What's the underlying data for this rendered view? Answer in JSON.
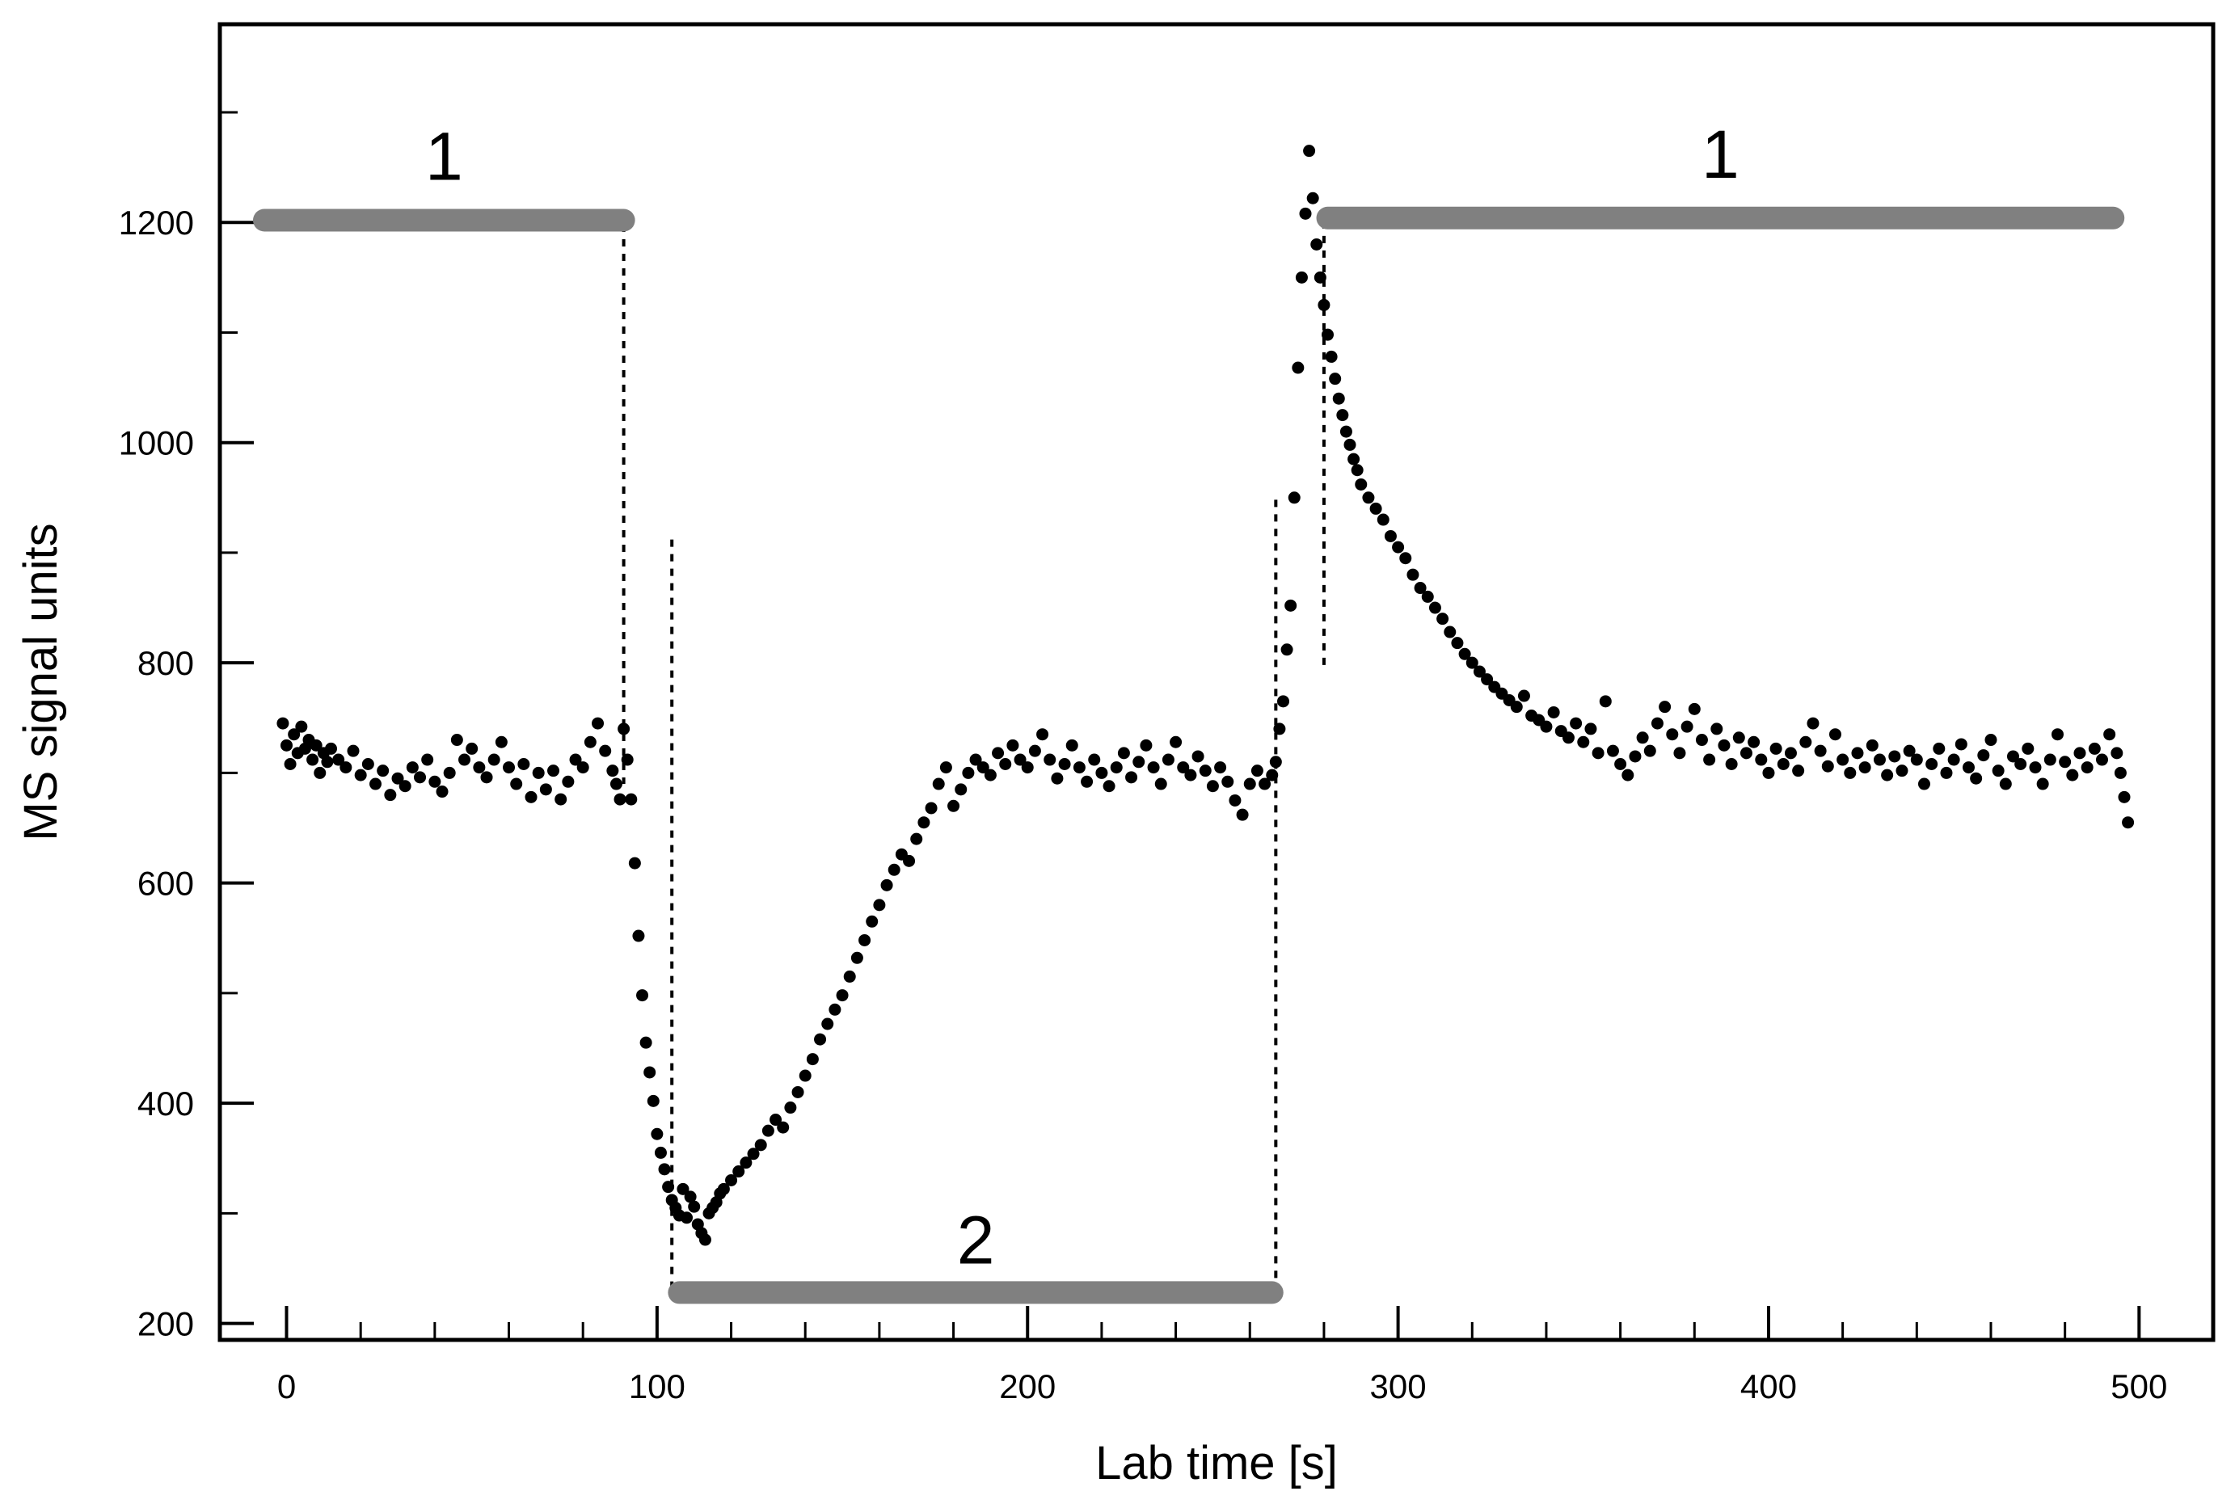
{
  "chart_data": {
    "type": "scatter",
    "xlabel": "Lab time [s]",
    "ylabel": "MS signal units",
    "xlim": [
      -18,
      520
    ],
    "ylim": [
      185,
      1380
    ],
    "x_ticks": [
      0,
      100,
      200,
      300,
      400,
      500
    ],
    "x_tick_labels": [
      "0",
      "100",
      "200",
      "300",
      "400",
      "500"
    ],
    "x_minor_step": 20,
    "y_ticks": [
      200,
      400,
      600,
      800,
      1000,
      1200
    ],
    "y_tick_labels": [
      "200",
      "400",
      "600",
      "800",
      "1000",
      "1200"
    ],
    "y_minor_step": 100,
    "grid": false,
    "colors": {
      "points": "#000000",
      "phase_bars": "#808080",
      "axes": "#000000"
    },
    "phase_bars": [
      {
        "label": "1",
        "x_start": -6,
        "x_end": 91,
        "y": 1202
      },
      {
        "label": "2",
        "x_start": 106,
        "x_end": 266,
        "y": 228
      },
      {
        "label": "1",
        "x_start": 281,
        "x_end": 493,
        "y": 1204
      }
    ],
    "markers": [
      {
        "x": 91,
        "y_from": 1198,
        "y_to": 690
      },
      {
        "x": 104,
        "y_from": 912,
        "y_to": 230
      },
      {
        "x": 267,
        "y_from": 228,
        "y_to": 953
      },
      {
        "x": 280,
        "y_from": 798,
        "y_to": 1198
      }
    ],
    "series": [
      {
        "style": "dotted",
        "description_points": [
          [
            -1,
            745
          ],
          [
            0,
            725
          ],
          [
            1,
            708
          ],
          [
            2,
            735
          ],
          [
            3,
            718
          ],
          [
            4,
            742
          ],
          [
            5,
            722
          ],
          [
            6,
            730
          ],
          [
            7,
            712
          ],
          [
            8,
            725
          ],
          [
            9,
            700
          ],
          [
            10,
            718
          ],
          [
            11,
            710
          ],
          [
            12,
            722
          ],
          [
            14,
            712
          ],
          [
            16,
            705
          ],
          [
            18,
            720
          ],
          [
            20,
            698
          ],
          [
            22,
            708
          ],
          [
            24,
            690
          ],
          [
            26,
            702
          ],
          [
            28,
            680
          ],
          [
            30,
            695
          ],
          [
            32,
            688
          ],
          [
            34,
            705
          ],
          [
            36,
            696
          ],
          [
            38,
            712
          ],
          [
            40,
            692
          ],
          [
            42,
            683
          ],
          [
            44,
            700
          ],
          [
            46,
            730
          ],
          [
            48,
            712
          ],
          [
            50,
            722
          ],
          [
            52,
            705
          ],
          [
            54,
            696
          ],
          [
            56,
            712
          ],
          [
            58,
            728
          ],
          [
            60,
            705
          ],
          [
            62,
            690
          ],
          [
            64,
            708
          ],
          [
            66,
            678
          ],
          [
            68,
            700
          ],
          [
            70,
            685
          ],
          [
            72,
            702
          ],
          [
            74,
            676
          ],
          [
            76,
            692
          ],
          [
            78,
            712
          ],
          [
            80,
            705
          ],
          [
            82,
            728
          ],
          [
            84,
            745
          ],
          [
            86,
            720
          ],
          [
            88,
            702
          ],
          [
            89,
            690
          ],
          [
            90,
            676
          ],
          [
            91,
            740
          ],
          [
            92,
            712
          ],
          [
            93,
            676
          ],
          [
            94,
            618
          ],
          [
            95,
            552
          ],
          [
            96,
            498
          ],
          [
            97,
            455
          ],
          [
            98,
            428
          ],
          [
            99,
            402
          ],
          [
            100,
            372
          ],
          [
            101,
            355
          ],
          [
            102,
            340
          ],
          [
            103,
            324
          ],
          [
            104,
            312
          ],
          [
            105,
            305
          ],
          [
            106,
            298
          ],
          [
            107,
            322
          ],
          [
            108,
            296
          ],
          [
            109,
            315
          ],
          [
            110,
            306
          ],
          [
            111,
            290
          ],
          [
            112,
            282
          ],
          [
            113,
            276
          ],
          [
            114,
            300
          ],
          [
            115,
            305
          ],
          [
            116,
            310
          ],
          [
            117,
            318
          ],
          [
            118,
            322
          ],
          [
            120,
            330
          ],
          [
            122,
            338
          ],
          [
            124,
            346
          ],
          [
            126,
            354
          ],
          [
            128,
            362
          ],
          [
            130,
            375
          ],
          [
            132,
            385
          ],
          [
            134,
            378
          ],
          [
            136,
            396
          ],
          [
            138,
            410
          ],
          [
            140,
            425
          ],
          [
            142,
            440
          ],
          [
            144,
            458
          ],
          [
            146,
            472
          ],
          [
            148,
            485
          ],
          [
            150,
            498
          ],
          [
            152,
            515
          ],
          [
            154,
            532
          ],
          [
            156,
            548
          ],
          [
            158,
            565
          ],
          [
            160,
            580
          ],
          [
            162,
            598
          ],
          [
            164,
            612
          ],
          [
            166,
            626
          ],
          [
            168,
            620
          ],
          [
            170,
            640
          ],
          [
            172,
            655
          ],
          [
            174,
            668
          ],
          [
            176,
            690
          ],
          [
            178,
            705
          ],
          [
            180,
            670
          ],
          [
            182,
            685
          ],
          [
            184,
            700
          ],
          [
            186,
            712
          ],
          [
            188,
            705
          ],
          [
            190,
            698
          ],
          [
            192,
            718
          ],
          [
            194,
            708
          ],
          [
            196,
            725
          ],
          [
            198,
            712
          ],
          [
            200,
            705
          ],
          [
            202,
            720
          ],
          [
            204,
            735
          ],
          [
            206,
            712
          ],
          [
            208,
            695
          ],
          [
            210,
            708
          ],
          [
            212,
            725
          ],
          [
            214,
            705
          ],
          [
            216,
            692
          ],
          [
            218,
            712
          ],
          [
            220,
            700
          ],
          [
            222,
            688
          ],
          [
            224,
            705
          ],
          [
            226,
            718
          ],
          [
            228,
            696
          ],
          [
            230,
            710
          ],
          [
            232,
            725
          ],
          [
            234,
            705
          ],
          [
            236,
            690
          ],
          [
            238,
            712
          ],
          [
            240,
            728
          ],
          [
            242,
            705
          ],
          [
            244,
            698
          ],
          [
            246,
            715
          ],
          [
            248,
            702
          ],
          [
            250,
            688
          ],
          [
            252,
            705
          ],
          [
            254,
            692
          ],
          [
            256,
            675
          ],
          [
            258,
            662
          ],
          [
            260,
            690
          ],
          [
            262,
            702
          ],
          [
            264,
            690
          ],
          [
            266,
            698
          ],
          [
            267,
            710
          ],
          [
            268,
            740
          ],
          [
            269,
            765
          ],
          [
            270,
            812
          ],
          [
            271,
            852
          ],
          [
            272,
            950
          ],
          [
            273,
            1068
          ],
          [
            274,
            1150
          ],
          [
            275,
            1208
          ],
          [
            276,
            1265
          ],
          [
            277,
            1222
          ],
          [
            278,
            1180
          ],
          [
            279,
            1150
          ],
          [
            280,
            1125
          ],
          [
            281,
            1098
          ],
          [
            282,
            1078
          ],
          [
            283,
            1058
          ],
          [
            284,
            1040
          ],
          [
            285,
            1025
          ],
          [
            286,
            1010
          ],
          [
            287,
            998
          ],
          [
            288,
            985
          ],
          [
            289,
            975
          ],
          [
            290,
            962
          ],
          [
            292,
            950
          ],
          [
            294,
            940
          ],
          [
            296,
            930
          ],
          [
            298,
            915
          ],
          [
            300,
            905
          ],
          [
            302,
            895
          ],
          [
            304,
            880
          ],
          [
            306,
            868
          ],
          [
            308,
            860
          ],
          [
            310,
            850
          ],
          [
            312,
            840
          ],
          [
            314,
            828
          ],
          [
            316,
            818
          ],
          [
            318,
            808
          ],
          [
            320,
            800
          ],
          [
            322,
            792
          ],
          [
            324,
            785
          ],
          [
            326,
            778
          ],
          [
            328,
            772
          ],
          [
            330,
            766
          ],
          [
            332,
            760
          ],
          [
            334,
            770
          ],
          [
            336,
            752
          ],
          [
            338,
            748
          ],
          [
            340,
            742
          ],
          [
            342,
            755
          ],
          [
            344,
            738
          ],
          [
            346,
            732
          ],
          [
            348,
            745
          ],
          [
            350,
            728
          ],
          [
            352,
            740
          ],
          [
            354,
            718
          ],
          [
            356,
            765
          ],
          [
            358,
            720
          ],
          [
            360,
            708
          ],
          [
            362,
            698
          ],
          [
            364,
            715
          ],
          [
            366,
            732
          ],
          [
            368,
            720
          ],
          [
            370,
            745
          ],
          [
            372,
            760
          ],
          [
            374,
            735
          ],
          [
            376,
            718
          ],
          [
            378,
            742
          ],
          [
            380,
            758
          ],
          [
            382,
            730
          ],
          [
            384,
            712
          ],
          [
            386,
            740
          ],
          [
            388,
            725
          ],
          [
            390,
            708
          ],
          [
            392,
            732
          ],
          [
            394,
            718
          ],
          [
            396,
            728
          ],
          [
            398,
            712
          ],
          [
            400,
            700
          ],
          [
            402,
            722
          ],
          [
            404,
            708
          ],
          [
            406,
            718
          ],
          [
            408,
            702
          ],
          [
            410,
            728
          ],
          [
            412,
            745
          ],
          [
            414,
            720
          ],
          [
            416,
            706
          ],
          [
            418,
            735
          ],
          [
            420,
            712
          ],
          [
            422,
            700
          ],
          [
            424,
            718
          ],
          [
            426,
            705
          ],
          [
            428,
            725
          ],
          [
            430,
            712
          ],
          [
            432,
            698
          ],
          [
            434,
            715
          ],
          [
            436,
            702
          ],
          [
            438,
            720
          ],
          [
            440,
            712
          ],
          [
            442,
            690
          ],
          [
            444,
            708
          ],
          [
            446,
            722
          ],
          [
            448,
            700
          ],
          [
            450,
            712
          ],
          [
            452,
            726
          ],
          [
            454,
            705
          ],
          [
            456,
            695
          ],
          [
            458,
            716
          ],
          [
            460,
            730
          ],
          [
            462,
            702
          ],
          [
            464,
            690
          ],
          [
            466,
            715
          ],
          [
            468,
            708
          ],
          [
            470,
            722
          ],
          [
            472,
            705
          ],
          [
            474,
            690
          ],
          [
            476,
            712
          ],
          [
            478,
            735
          ],
          [
            480,
            710
          ],
          [
            482,
            698
          ],
          [
            484,
            718
          ],
          [
            486,
            705
          ],
          [
            488,
            722
          ],
          [
            490,
            712
          ],
          [
            492,
            735
          ],
          [
            494,
            718
          ],
          [
            495,
            700
          ],
          [
            496,
            678
          ],
          [
            497,
            655
          ]
        ]
      }
    ]
  }
}
